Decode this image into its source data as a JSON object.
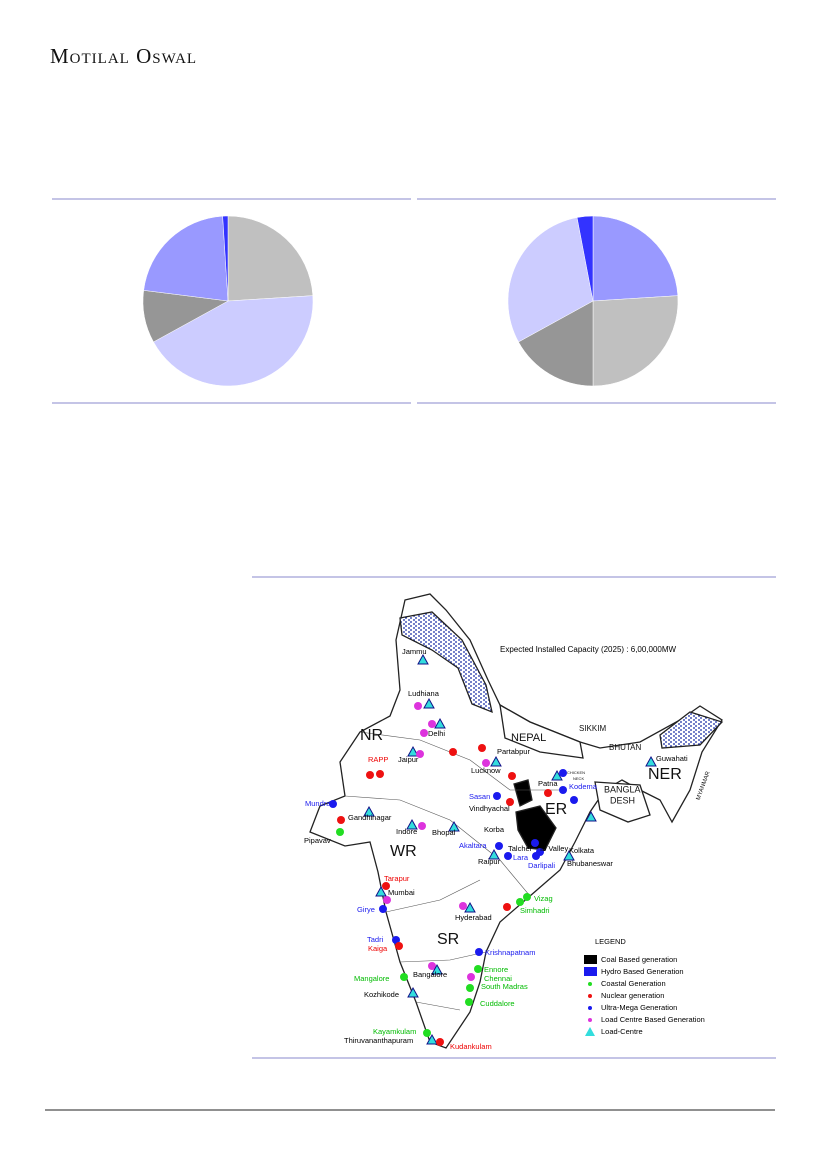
{
  "header": {
    "brand": "Motilal Oswal"
  },
  "chart_data": [
    {
      "type": "pie",
      "values": [
        24,
        43,
        10,
        22,
        1
      ],
      "colors": [
        "#c0c0c0",
        "#ccccff",
        "#969696",
        "#9999ff",
        "#3333ff"
      ]
    },
    {
      "type": "pie",
      "values": [
        24,
        26,
        17,
        30,
        3
      ],
      "colors": [
        "#9999ff",
        "#c0c0c0",
        "#969696",
        "#ccccff",
        "#3333ff"
      ]
    }
  ],
  "map": {
    "title": "Expected Installed Capacity (2025) : 6,00,000MW",
    "regions": [
      "NR",
      "WR",
      "SR",
      "ER",
      "NER",
      "NEPAL",
      "SIKKIM",
      "BHUTAN",
      "BANGLA",
      "DESH",
      "MYANMAR",
      "CHICKEN",
      "NECK"
    ],
    "places": [
      "Jammu",
      "Ludhiana",
      "Delhi",
      "RAPP",
      "Jaipur",
      "Partabpur",
      "Lucknow",
      "Patna",
      "Kodema",
      "Sasan",
      "Vindhyachal",
      "Mundra",
      "Gandhinagar",
      "Pipavav",
      "Indore",
      "Bhopal",
      "Korba",
      "Akaltara",
      "Talcher",
      "Ib Valley",
      "Lara",
      "Raipur",
      "Darlipali",
      "Bhubaneswar",
      "Kolkata",
      "Guwahati",
      "Tarapur",
      "Mumbai",
      "Girye",
      "Hyderabad",
      "Vizag",
      "Simhadri",
      "Tadri",
      "Kaiga",
      "Krishnapatnam",
      "Mangalore",
      "Bangalore",
      "Ennore",
      "Chennai",
      "South Madras",
      "Kozhikode",
      "Cuddalore",
      "Kayamkulam",
      "Thiruvananthapuram",
      "Kudankulam"
    ],
    "legend": {
      "title": "LEGEND",
      "items": [
        "Coal Based generation",
        "Hydro Based Generation",
        "Coastal Generation",
        "Nuclear generation",
        "Ultra-Mega Generation",
        "Load Centre Based Generation",
        "Load-Centre"
      ]
    }
  }
}
